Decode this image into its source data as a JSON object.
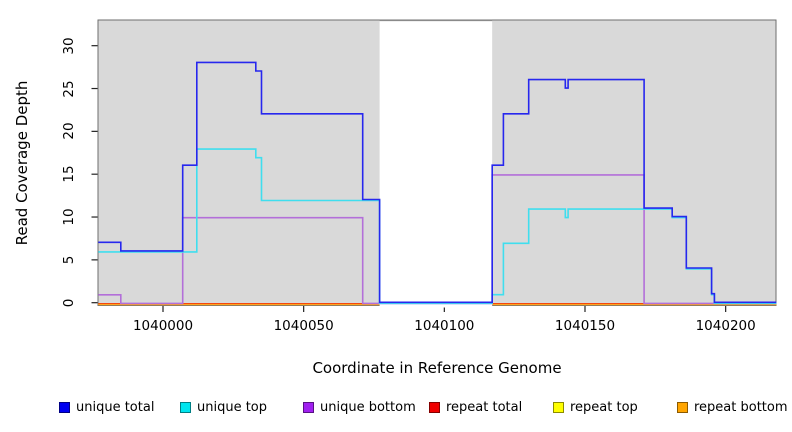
{
  "figure": {
    "x_axis": {
      "title": "Coordinate in Reference Genome",
      "tick_labels": [
        "1040000",
        "1040050",
        "1040100",
        "1040150",
        "1040200"
      ],
      "tick_values": [
        1040000,
        1040050,
        1040100,
        1040150,
        1040200
      ]
    },
    "y_axis": {
      "title": "Read Coverage Depth",
      "tick_labels": [
        "0",
        "5",
        "10",
        "15",
        "20",
        "25",
        "30"
      ],
      "tick_values": [
        0,
        5,
        10,
        15,
        20,
        25,
        30
      ]
    }
  },
  "chart_data": {
    "type": "line",
    "line_style": "step-after",
    "title": "",
    "xlabel": "Coordinate in Reference Genome",
    "ylabel": "Read Coverage Depth",
    "xlim": [
      1039977,
      1040218
    ],
    "ylim": [
      0,
      33
    ],
    "grid": false,
    "panel_background": "#d9d9d9",
    "gap_region": {
      "x_start": 1040077,
      "x_end": 1040117,
      "color": "#ffffff",
      "note": "white band where coverage drops to 0"
    },
    "series": [
      {
        "name": "repeat top",
        "group": "repeat",
        "color": "#ffff00",
        "points": [
          [
            1039977,
            0
          ],
          [
            1040218,
            0
          ]
        ]
      },
      {
        "name": "repeat total",
        "group": "repeat",
        "color": "#ee0000",
        "points": [
          [
            1039977,
            0
          ],
          [
            1040218,
            0
          ]
        ]
      },
      {
        "name": "repeat bottom",
        "group": "repeat",
        "color": "#ffa51e",
        "points": [
          [
            1039977,
            0
          ],
          [
            1040218,
            0
          ]
        ]
      },
      {
        "name": "unique bottom",
        "group": "unique",
        "color": "#b36fd9",
        "points": [
          [
            1039977,
            1
          ],
          [
            1039985,
            0
          ],
          [
            1040007,
            10
          ],
          [
            1040071,
            0
          ],
          [
            1040117,
            15
          ],
          [
            1040171,
            0
          ],
          [
            1040218,
            0
          ]
        ]
      },
      {
        "name": "unique top",
        "group": "unique",
        "color": "#3fdeee",
        "points": [
          [
            1039977,
            6
          ],
          [
            1040012,
            18
          ],
          [
            1040033,
            17
          ],
          [
            1040035,
            12
          ],
          [
            1040077,
            0
          ],
          [
            1040117,
            1
          ],
          [
            1040121,
            7
          ],
          [
            1040130,
            11
          ],
          [
            1040143,
            10
          ],
          [
            1040144,
            11
          ],
          [
            1040181,
            10
          ],
          [
            1040186,
            4
          ],
          [
            1040195,
            1
          ],
          [
            1040196,
            0
          ],
          [
            1040218,
            0
          ]
        ]
      },
      {
        "name": "unique total",
        "group": "unique",
        "color": "#2727ee",
        "points": [
          [
            1039977,
            7
          ],
          [
            1039985,
            6
          ],
          [
            1040007,
            16
          ],
          [
            1040012,
            28
          ],
          [
            1040033,
            27
          ],
          [
            1040035,
            22
          ],
          [
            1040071,
            12
          ],
          [
            1040077,
            0
          ],
          [
            1040117,
            16
          ],
          [
            1040121,
            22
          ],
          [
            1040130,
            26
          ],
          [
            1040143,
            25
          ],
          [
            1040144,
            26
          ],
          [
            1040171,
            11
          ],
          [
            1040181,
            10
          ],
          [
            1040186,
            4
          ],
          [
            1040195,
            1
          ],
          [
            1040196,
            0
          ],
          [
            1040218,
            0
          ]
        ]
      }
    ],
    "legend": {
      "position": "bottom",
      "items": [
        {
          "label": "unique total",
          "color": "#0000f0"
        },
        {
          "label": "unique top",
          "color": "#00e5ee"
        },
        {
          "label": "unique bottom",
          "color": "#a020f0"
        },
        {
          "label": "repeat total",
          "color": "#ee0000"
        },
        {
          "label": "repeat top",
          "color": "#ffff00"
        },
        {
          "label": "repeat bottom",
          "color": "#ffa500"
        }
      ]
    }
  }
}
